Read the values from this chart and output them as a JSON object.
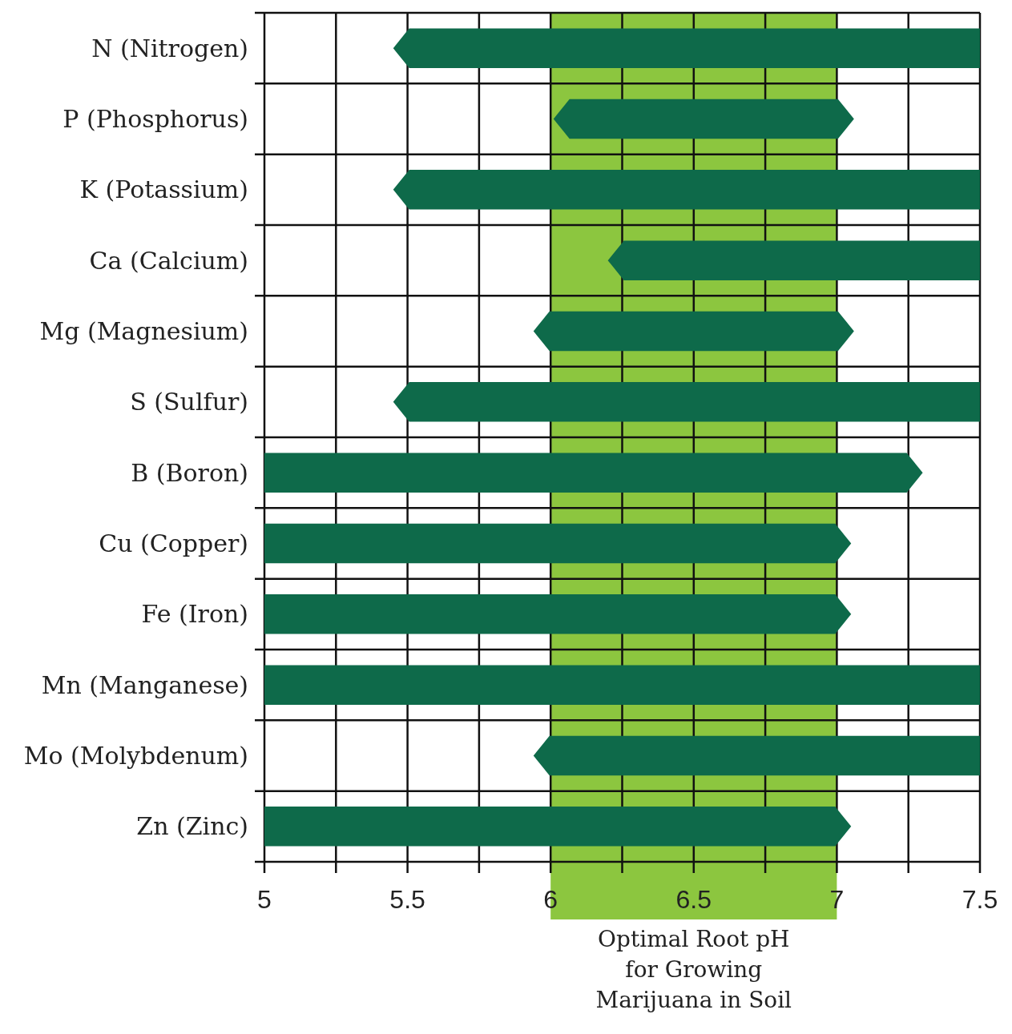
{
  "chart_data": {
    "type": "bar",
    "orientation": "horizontal",
    "categories": [
      "N (Nitrogen)",
      "P (Phosphorus)",
      "K (Potassium)",
      "Ca (Calcium)",
      "Mg (Magnesium)",
      "S (Sulfur)",
      "B (Boron)",
      "Cu (Copper)",
      "Fe (Iron)",
      "Mn (Manganese)",
      "Mo (Molybdenum)",
      "Zn (Zinc)"
    ],
    "base": [
      5.45,
      6.01,
      5.45,
      6.2,
      5.94,
      5.45,
      5,
      5,
      5,
      5,
      5.94,
      5
    ],
    "values": [
      2.05,
      1.05,
      2.05,
      1.3,
      1.12,
      2.05,
      2.3,
      2.05,
      2.05,
      2.5,
      1.56,
      2.05
    ],
    "color": "#0e6a4a",
    "xlim": [
      5,
      7.5
    ],
    "xticks": [
      5,
      {
        "value": 5.25,
        "label": null
      },
      5.5,
      {
        "value": 5.75,
        "label": null
      },
      6,
      {
        "value": 6.25,
        "label": null
      },
      6.5,
      {
        "value": 6.75,
        "label": null
      },
      7,
      {
        "value": 7.25,
        "label": null
      },
      7.5
    ],
    "grid": true,
    "bands": [
      {
        "axis": "x",
        "from": 6,
        "to": 7,
        "label": "Optimal Root pH for Growing Marijuana in Soil",
        "color": "#8cc63f"
      }
    ]
  }
}
